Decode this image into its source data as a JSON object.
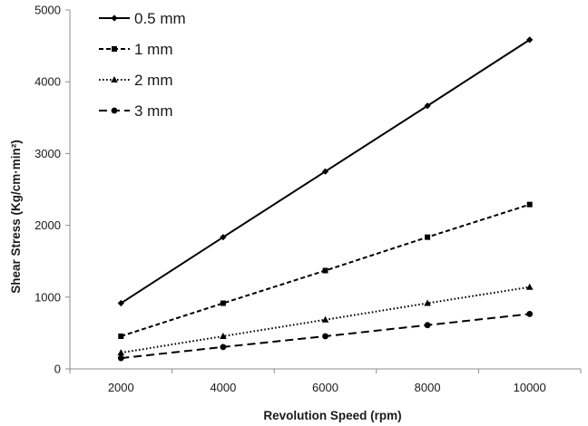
{
  "chart_data": {
    "type": "line",
    "xlabel": "Revolution Speed (rpm)",
    "ylabel": "Shear Stress (Kg/cm·min²)",
    "x": [
      2000,
      4000,
      6000,
      8000,
      10000
    ],
    "xlim": [
      1000,
      11000
    ],
    "x_ticks": [
      "2000",
      "4000",
      "6000",
      "8000",
      "10000"
    ],
    "ylim": [
      0,
      5000
    ],
    "y_ticks": [
      "0",
      "1000",
      "2000",
      "3000",
      "4000",
      "5000"
    ],
    "grid": false,
    "legend_position": "top-left",
    "series": [
      {
        "name": "0.5 mm",
        "values": [
          915,
          1835,
          2750,
          3665,
          4585
        ],
        "marker": "diamond",
        "dash": "solid"
      },
      {
        "name": "1 mm",
        "values": [
          455,
          915,
          1370,
          1835,
          2290
        ],
        "marker": "square",
        "dash": "dashed"
      },
      {
        "name": "2 mm",
        "values": [
          225,
          455,
          685,
          915,
          1140
        ],
        "marker": "triangle",
        "dash": "dotted"
      },
      {
        "name": "3 mm",
        "values": [
          150,
          305,
          455,
          610,
          765
        ],
        "marker": "circle",
        "dash": "long-dashed"
      }
    ]
  }
}
